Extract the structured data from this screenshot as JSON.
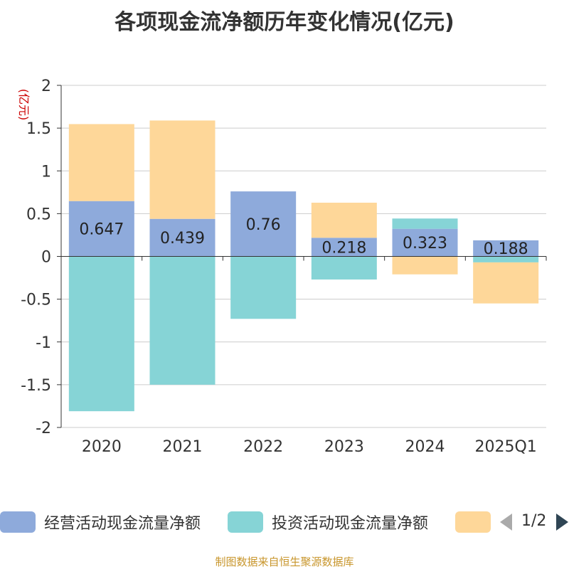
{
  "title": "各项现金流净额历年变化情况(亿元)",
  "source_note": "制图数据来自恒生聚源数据库",
  "legend": {
    "items": [
      {
        "label": "经营活动现金流量净额",
        "color": "#8eaadb"
      },
      {
        "label": "投资活动现金流量净额",
        "color": "#86d4d6"
      },
      {
        "label": "",
        "color": "#fed799"
      }
    ],
    "pager": "1/2"
  },
  "chart_data": {
    "type": "bar",
    "stacked": true,
    "title": "各项现金流净额历年变化情况(亿元)",
    "ylabel": "(亿元)",
    "ylim": [
      -2,
      2
    ],
    "yticks": [
      2,
      1.5,
      1,
      0.5,
      0,
      -0.5,
      -1,
      -1.5,
      -2
    ],
    "ytick_labels": [
      "2",
      "1.5",
      "1",
      "0.5",
      "0",
      "-0.5",
      "-1",
      "-1.5",
      "-2"
    ],
    "grid": true,
    "legend_position": "bottom",
    "categories": [
      "2020",
      "2021",
      "2022",
      "2023",
      "2024",
      "2025Q1"
    ],
    "series": [
      {
        "name": "经营活动现金流量净额",
        "color": "#8eaadb",
        "values": [
          0.647,
          0.439,
          0.76,
          0.218,
          0.323,
          0.188
        ],
        "labels": [
          "0.647",
          "0.439",
          "0.76",
          "0.218",
          "0.323",
          "0.188"
        ]
      },
      {
        "name": "投资活动现金流量净额",
        "color": "#86d4d6",
        "values": [
          -1.81,
          -1.5,
          -0.73,
          -0.27,
          0.12,
          -0.07
        ]
      },
      {
        "color": "#fed799",
        "values": [
          0.9,
          1.15,
          0.0,
          0.41,
          -0.21,
          -0.48
        ]
      }
    ]
  }
}
